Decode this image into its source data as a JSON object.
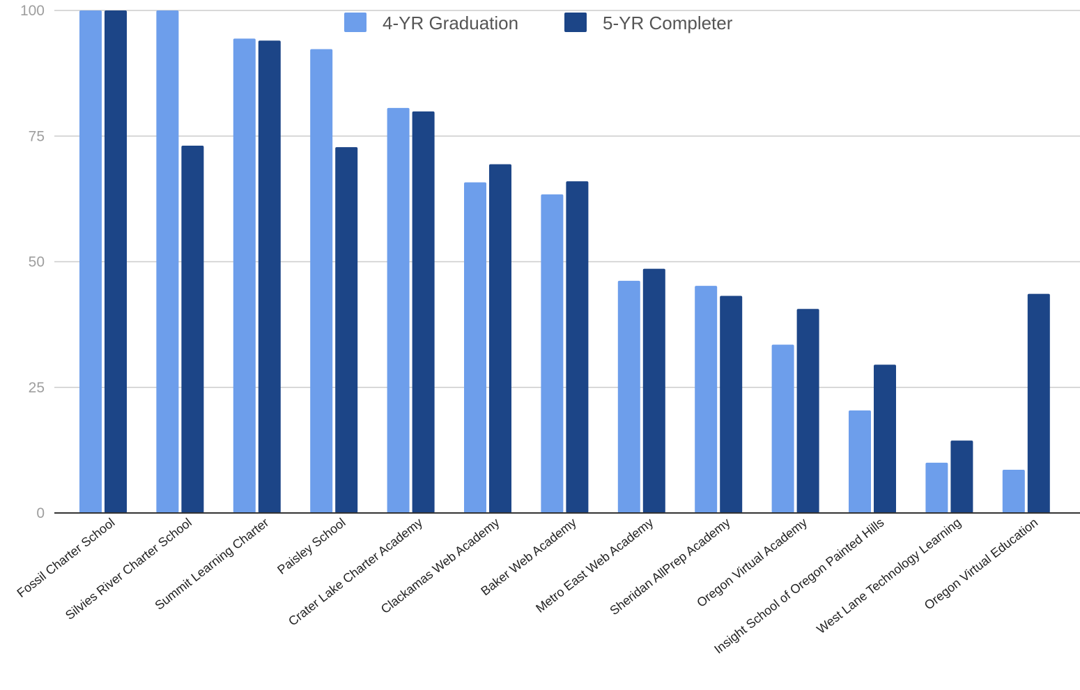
{
  "chart_data": {
    "type": "bar",
    "categories": [
      "Fossil Charter School",
      "Silvies River Charter School",
      "Summit Learning Charter",
      "Paisley School",
      "Crater Lake Charter Academy",
      "Clackamas Web Academy",
      "Baker Web Academy",
      "Metro East Web Academy",
      "Sheridan AllPrep Academy",
      "Oregon Virtual Academy",
      "Insight School of Oregon Painted Hills",
      "West Lane Technology Learning",
      "Oregon Virtual Education"
    ],
    "series": [
      {
        "name": "4-YR Graduation",
        "color": "#6d9eeb",
        "values": [
          100,
          100,
          94.4,
          92.3,
          80.6,
          65.8,
          63.4,
          46.2,
          45.2,
          33.5,
          20.4,
          10.0,
          8.6
        ]
      },
      {
        "name": "5-YR Completer",
        "color": "#1c4587",
        "values": [
          100,
          73.1,
          94.0,
          72.8,
          79.9,
          69.4,
          66.0,
          48.6,
          43.2,
          40.6,
          29.5,
          14.4,
          43.6
        ]
      }
    ],
    "yticks": [
      0,
      25,
      50,
      75,
      100
    ],
    "ylim": [
      0,
      100
    ],
    "grid": true,
    "legend_position": "top-center"
  }
}
